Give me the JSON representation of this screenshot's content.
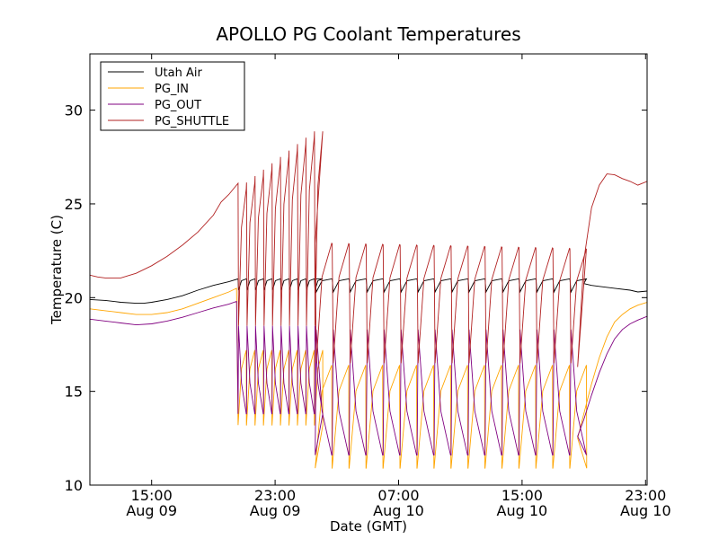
{
  "chart_data": {
    "type": "line",
    "title": "APOLLO PG Coolant Temperatures",
    "xlabel": "Date (GMT)",
    "ylabel": "Temperature (C)",
    "x_unit": "hours since 2014-08-09 00:00 GMT",
    "xlim": [
      11,
      47.1
    ],
    "ylim": [
      10,
      33
    ],
    "yticks": [
      10,
      15,
      20,
      25,
      30
    ],
    "xticks": [
      {
        "x": 15,
        "time": "15:00",
        "date": "Aug 09"
      },
      {
        "x": 23,
        "time": "23:00",
        "date": "Aug 09"
      },
      {
        "x": 31,
        "time": "07:00",
        "date": "Aug 10"
      },
      {
        "x": 39,
        "time": "15:00",
        "date": "Aug 10"
      },
      {
        "x": 47,
        "time": "23:00",
        "date": "Aug 10"
      }
    ],
    "legend": {
      "location": "upper-left",
      "entries": [
        "Utah Air",
        "PG_IN",
        "PG_OUT",
        "PG_SHUTTLE"
      ]
    },
    "series": [
      {
        "name": "Utah Air",
        "color": "#000000",
        "x": [
          11,
          12,
          13,
          14,
          14.5,
          15,
          16,
          17,
          18,
          19,
          20,
          21.5,
          22.5,
          23.5,
          24.5,
          25.5,
          26.5,
          27.5,
          28.5,
          29.5,
          30.5,
          31.5,
          32.5,
          33.5,
          34.5,
          35.5,
          36.5,
          37.5,
          38.5,
          39.5,
          40.5,
          41.5,
          42.5,
          43,
          43.5,
          44,
          45,
          46,
          46.5,
          47.1
        ],
        "values": [
          19.9,
          19.85,
          19.75,
          19.7,
          19.7,
          19.75,
          19.9,
          20.1,
          20.4,
          20.65,
          20.85,
          20.95,
          21.0,
          21.0,
          20.95,
          20.9,
          20.85,
          20.8,
          20.8,
          20.75,
          20.75,
          20.8,
          20.8,
          20.85,
          20.85,
          20.9,
          20.9,
          20.95,
          20.95,
          20.95,
          20.95,
          20.9,
          20.9,
          20.75,
          20.65,
          20.6,
          20.5,
          20.4,
          20.3,
          20.35
        ]
      },
      {
        "name": "PG_IN",
        "color": "#ffa500",
        "x": [
          11,
          12,
          13,
          14,
          15,
          16,
          17,
          18,
          19,
          20,
          20.5,
          42.6,
          43,
          43.5,
          44,
          44.5,
          45,
          45.5,
          46,
          46.5,
          47.1
        ],
        "values": [
          19.4,
          19.3,
          19.2,
          19.1,
          19.1,
          19.2,
          19.4,
          19.7,
          20.0,
          20.3,
          20.5,
          12.5,
          13.8,
          15.4,
          16.8,
          17.9,
          18.7,
          19.1,
          19.4,
          19.6,
          19.75
        ]
      },
      {
        "name": "PG_OUT",
        "color": "#800080",
        "x": [
          11,
          12,
          13,
          14,
          15,
          16,
          17,
          18,
          19,
          20,
          20.5,
          42.6,
          43,
          43.5,
          44,
          44.5,
          45,
          45.5,
          46,
          46.5,
          47.1
        ],
        "values": [
          18.85,
          18.75,
          18.65,
          18.55,
          18.6,
          18.75,
          18.95,
          19.2,
          19.45,
          19.65,
          19.8,
          12.6,
          13.5,
          14.8,
          16.0,
          17.0,
          17.8,
          18.3,
          18.6,
          18.8,
          19.0
        ]
      },
      {
        "name": "PG_SHUTTLE",
        "color": "#b22222",
        "x": [
          11,
          11.5,
          12,
          13,
          14,
          15,
          16,
          17,
          18,
          19,
          19.5,
          20,
          20.6,
          42.6,
          43,
          43.5,
          44,
          44.5,
          45,
          45.5,
          46,
          46.5,
          47.1
        ],
        "values": [
          21.2,
          21.1,
          21.05,
          21.05,
          21.3,
          21.7,
          22.2,
          22.8,
          23.5,
          24.4,
          25.1,
          25.5,
          26.1,
          16.3,
          22.0,
          24.8,
          26.0,
          26.6,
          26.55,
          26.35,
          26.2,
          26.0,
          26.2
        ]
      }
    ],
    "cycling": {
      "x_start": 20.6,
      "x_end": 42.6,
      "segments": [
        {
          "x_start": 20.6,
          "x_end": 25.6,
          "period": 0.55,
          "utah_low": 20.4,
          "utah_high": 21.0,
          "shuttle_low": 18.5,
          "shuttle_high": 25.8,
          "shuttle_high_end": 28.9,
          "in_low": 13.2,
          "in_high": 17.2,
          "out_low": 13.8,
          "out_high": 18.5
        },
        {
          "x_start": 25.6,
          "x_end": 42.6,
          "period": 1.1,
          "utah_low": 20.3,
          "utah_high": 21.0,
          "shuttle_low": 16.5,
          "shuttle_high": 22.9,
          "shuttle_high_end": 22.6,
          "in_low": 10.9,
          "in_high": 16.4,
          "out_low": 11.6,
          "out_high": 18.3
        }
      ]
    }
  }
}
